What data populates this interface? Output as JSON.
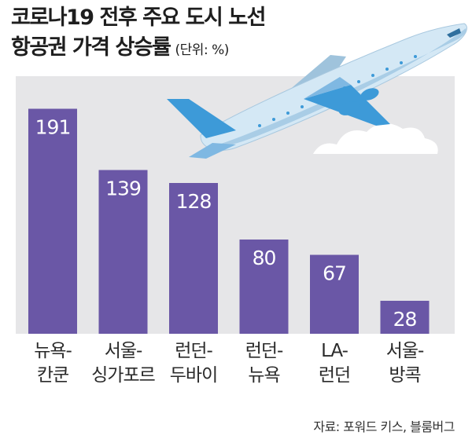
{
  "title": {
    "line1": "코로나19 전후 주요 도시 노선",
    "line2": "항공권 가격 상승률",
    "unit": "(단위: %)"
  },
  "source": "자료: 포워드 키스, 블룸버그",
  "colors": {
    "bar": "#6a57a6",
    "plot_background": "#e6e6e8",
    "value_label": "#ffffff",
    "plane_body": "#d4e8f5",
    "plane_accent": "#3d9ad8",
    "cloud": "#ffffff"
  },
  "illustration": {
    "icon": "airplane-icon",
    "cloud": "cloud-icon"
  },
  "chart_data": {
    "type": "bar",
    "categories": [
      "뉴욕-\n칸쿤",
      "서울-\n싱가포르",
      "런던-\n두바이",
      "런던-\n뉴욕",
      "LA-\n런던",
      "서울-\n방콕"
    ],
    "values": [
      191,
      139,
      128,
      80,
      67,
      28
    ],
    "title": "코로나19 전후 주요 도시 노선 항공권 가격 상승률",
    "ylim": [
      0,
      200
    ],
    "grid": false,
    "legend": "none"
  }
}
